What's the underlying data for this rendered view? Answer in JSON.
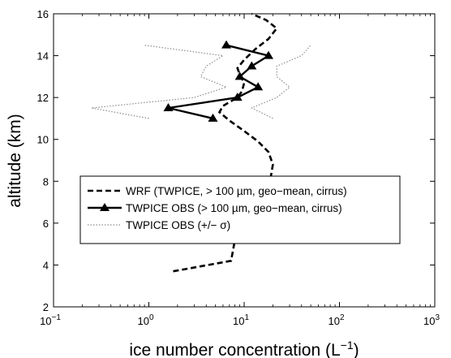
{
  "chart_data": {
    "type": "line",
    "xscale": "log",
    "xlim": [
      0.1,
      1000
    ],
    "ylim": [
      2,
      16
    ],
    "x_tick_values": [
      0.1,
      1,
      10,
      100,
      1000
    ],
    "x_tick_labels": [
      {
        "base": "10",
        "exp": "−1"
      },
      {
        "base": "10",
        "exp": "0"
      },
      {
        "base": "10",
        "exp": "1"
      },
      {
        "base": "10",
        "exp": "2"
      },
      {
        "base": "10",
        "exp": "3"
      }
    ],
    "y_ticks": [
      2,
      4,
      6,
      8,
      10,
      12,
      14,
      16
    ],
    "xlabel": {
      "text": "ice number concentration (L",
      "exp": "−1",
      "suffix": ")"
    },
    "ylabel": "altitude (km)",
    "grid": false,
    "legend_position": "center-left",
    "series": [
      {
        "name": "WRF (TWPICE, > 100 µm, geo−mean, cirrus)",
        "style": "dashed",
        "color": "#000000",
        "points": [
          [
            1.8,
            3.7
          ],
          [
            7.3,
            4.2
          ],
          [
            8.0,
            5.2
          ],
          [
            9.5,
            6.0
          ],
          [
            11,
            6.5
          ],
          [
            13,
            7.0
          ],
          [
            17,
            7.6
          ],
          [
            19,
            8.2
          ],
          [
            20,
            8.8
          ],
          [
            18,
            9.4
          ],
          [
            14,
            9.9
          ],
          [
            10,
            10.4
          ],
          [
            7,
            10.9
          ],
          [
            5.5,
            11.3
          ],
          [
            6,
            11.6
          ],
          [
            8.5,
            12.0
          ],
          [
            9.5,
            12.3
          ],
          [
            10,
            12.7
          ],
          [
            9,
            13.1
          ],
          [
            8.5,
            13.4
          ],
          [
            10,
            13.8
          ],
          [
            13,
            14.3
          ],
          [
            18,
            14.8
          ],
          [
            22,
            15.3
          ],
          [
            17,
            15.7
          ],
          [
            12,
            16.0
          ]
        ]
      },
      {
        "name": "TWPICE OBS (> 100 µm, geo−mean, cirrus)",
        "style": "solid-triangle",
        "color": "#000000",
        "points": [
          [
            4.7,
            11.0
          ],
          [
            1.6,
            11.5
          ],
          [
            8.5,
            12.0
          ],
          [
            14,
            12.5
          ],
          [
            9,
            13.0
          ],
          [
            12,
            13.5
          ],
          [
            18,
            14.0
          ],
          [
            6.5,
            14.5
          ]
        ]
      },
      {
        "name": "TWPICE OBS (+/− σ)",
        "style": "dotted",
        "color": "#8c8c8c",
        "points_left": [
          [
            1.0,
            11.0
          ],
          [
            0.25,
            11.5
          ],
          [
            3.0,
            12.0
          ],
          [
            6.5,
            12.5
          ],
          [
            3.5,
            13.0
          ],
          [
            4.0,
            13.5
          ],
          [
            6.0,
            14.0
          ],
          [
            0.9,
            14.5
          ]
        ],
        "points_right": [
          [
            20,
            11.0
          ],
          [
            12,
            11.5
          ],
          [
            22,
            12.0
          ],
          [
            30,
            12.5
          ],
          [
            22,
            13.0
          ],
          [
            22,
            13.5
          ],
          [
            40,
            14.0
          ],
          [
            50,
            14.5
          ]
        ]
      }
    ]
  }
}
